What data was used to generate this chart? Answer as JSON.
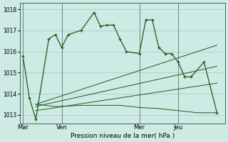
{
  "background_color": "#ceeae4",
  "grid_color": "#aacfc8",
  "line_color": "#1a5c1a",
  "title": "Pression niveau de la mer( hPa )",
  "ylim": [
    1012.6,
    1018.3
  ],
  "yticks": [
    1013,
    1014,
    1015,
    1016,
    1017,
    1018
  ],
  "xtick_labels": [
    "Mar",
    "Ven",
    "Mer",
    "Jeu"
  ],
  "xtick_positions": [
    0,
    24,
    72,
    96
  ],
  "vline_positions": [
    0,
    24,
    72,
    96
  ],
  "xlim": [
    -2,
    125
  ],
  "series1_x": [
    0,
    4,
    8,
    16,
    20,
    24,
    28,
    36,
    44,
    48,
    52,
    56,
    60,
    64,
    72,
    76,
    80,
    84,
    88,
    92,
    96,
    100,
    104,
    112,
    120
  ],
  "series1_y": [
    1015.8,
    1013.8,
    1012.8,
    1016.6,
    1016.8,
    1016.2,
    1016.8,
    1017.0,
    1017.85,
    1017.2,
    1017.25,
    1017.25,
    1016.6,
    1016.0,
    1015.9,
    1017.5,
    1017.5,
    1016.2,
    1015.9,
    1015.9,
    1015.5,
    1014.8,
    1014.8,
    1015.5,
    1013.1
  ],
  "series2_x": [
    8,
    20,
    24,
    36,
    48,
    60,
    72,
    84,
    96,
    108,
    120
  ],
  "series2_y": [
    1013.5,
    1013.4,
    1013.4,
    1013.45,
    1013.45,
    1013.45,
    1013.35,
    1013.3,
    1013.2,
    1013.1,
    1013.1
  ],
  "series3_x": [
    8,
    120
  ],
  "series3_y": [
    1013.5,
    1016.3
  ],
  "series4_x": [
    8,
    120
  ],
  "series4_y": [
    1013.4,
    1015.3
  ],
  "series5_x": [
    8,
    120
  ],
  "series5_y": [
    1013.2,
    1014.5
  ]
}
